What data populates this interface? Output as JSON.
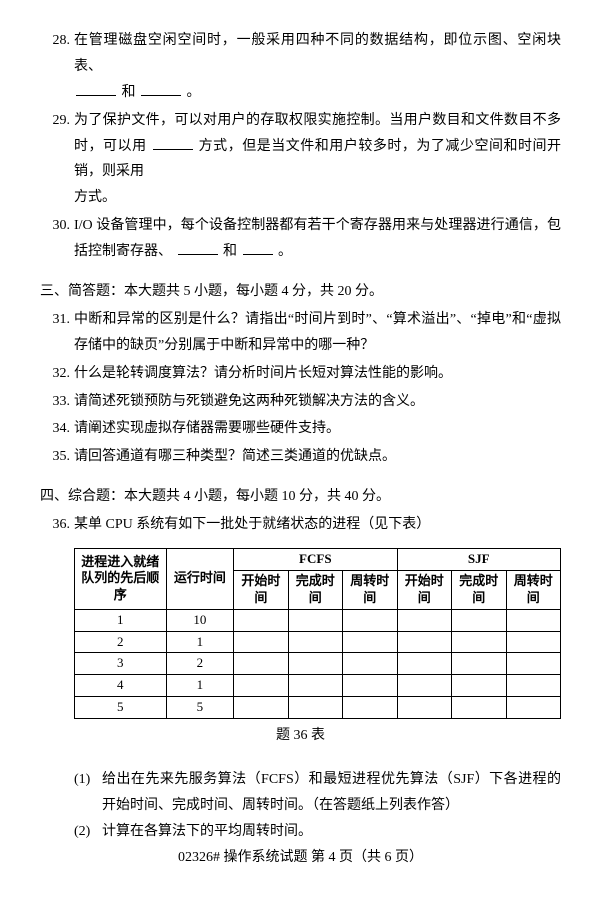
{
  "questions": {
    "q28": {
      "num": "28.",
      "text_a": "在管理磁盘空闲空间时，一般采用四种不同的数据结构，即位示图、空闲块表、",
      "text_b": "和",
      "text_c": "。"
    },
    "q29": {
      "num": "29.",
      "text_a": "为了保护文件，可以对用户的存取权限实施控制。当用户数目和文件数目不多时，可以用",
      "text_b": "方式，但是当文件和用户较多时，为了减少空间和时间开销，则采用",
      "text_c": "方式。"
    },
    "q30": {
      "num": "30.",
      "text_a": "I/O 设备管理中，每个设备控制器都有若干个寄存器用来与处理器进行通信，包括控制寄存器、",
      "text_b": "和",
      "text_c": "。"
    }
  },
  "section3": {
    "head": "三、简答题：本大题共 5 小题，每小题 4 分，共 20 分。",
    "q31": {
      "num": "31.",
      "text": "中断和异常的区别是什么？请指出“时间片到时”、“算术溢出”、“掉电”和“虚拟存储中的缺页”分别属于中断和异常中的哪一种？"
    },
    "q32": {
      "num": "32.",
      "text": "什么是轮转调度算法？请分析时间片长短对算法性能的影响。"
    },
    "q33": {
      "num": "33.",
      "text": "请简述死锁预防与死锁避免这两种死锁解决方法的含义。"
    },
    "q34": {
      "num": "34.",
      "text": "请阐述实现虚拟存储器需要哪些硬件支持。"
    },
    "q35": {
      "num": "35.",
      "text": "请回答通道有哪三种类型？简述三类通道的优缺点。"
    }
  },
  "section4": {
    "head": "四、综合题：本大题共 4 小题，每小题 10 分，共 40 分。",
    "q36": {
      "num": "36.",
      "text": "某单 CPU 系统有如下一批处于就绪状态的进程（见下表）"
    }
  },
  "table36": {
    "columns": {
      "proc": "进程进入就绪队列的先后顺序",
      "run": "运行时间",
      "group1": "FCFS",
      "group2": "SJF",
      "sub_start": "开始时间",
      "sub_finish": "完成时间",
      "sub_turn": "周转时间"
    },
    "rows": [
      {
        "proc": "1",
        "run": "10"
      },
      {
        "proc": "2",
        "run": "1"
      },
      {
        "proc": "3",
        "run": "2"
      },
      {
        "proc": "4",
        "run": "1"
      },
      {
        "proc": "5",
        "run": "5"
      }
    ],
    "caption": "题 36 表"
  },
  "sub36": {
    "s1": {
      "num": "(1)",
      "text": "给出在先来先服务算法（FCFS）和最短进程优先算法（SJF）下各进程的开始时间、完成时间、周转时间。（在答题纸上列表作答）"
    },
    "s2": {
      "num": "(2)",
      "text": "计算在各算法下的平均周转时间。"
    }
  },
  "footer": "02326# 操作系统试题 第 4 页（共 6 页）"
}
